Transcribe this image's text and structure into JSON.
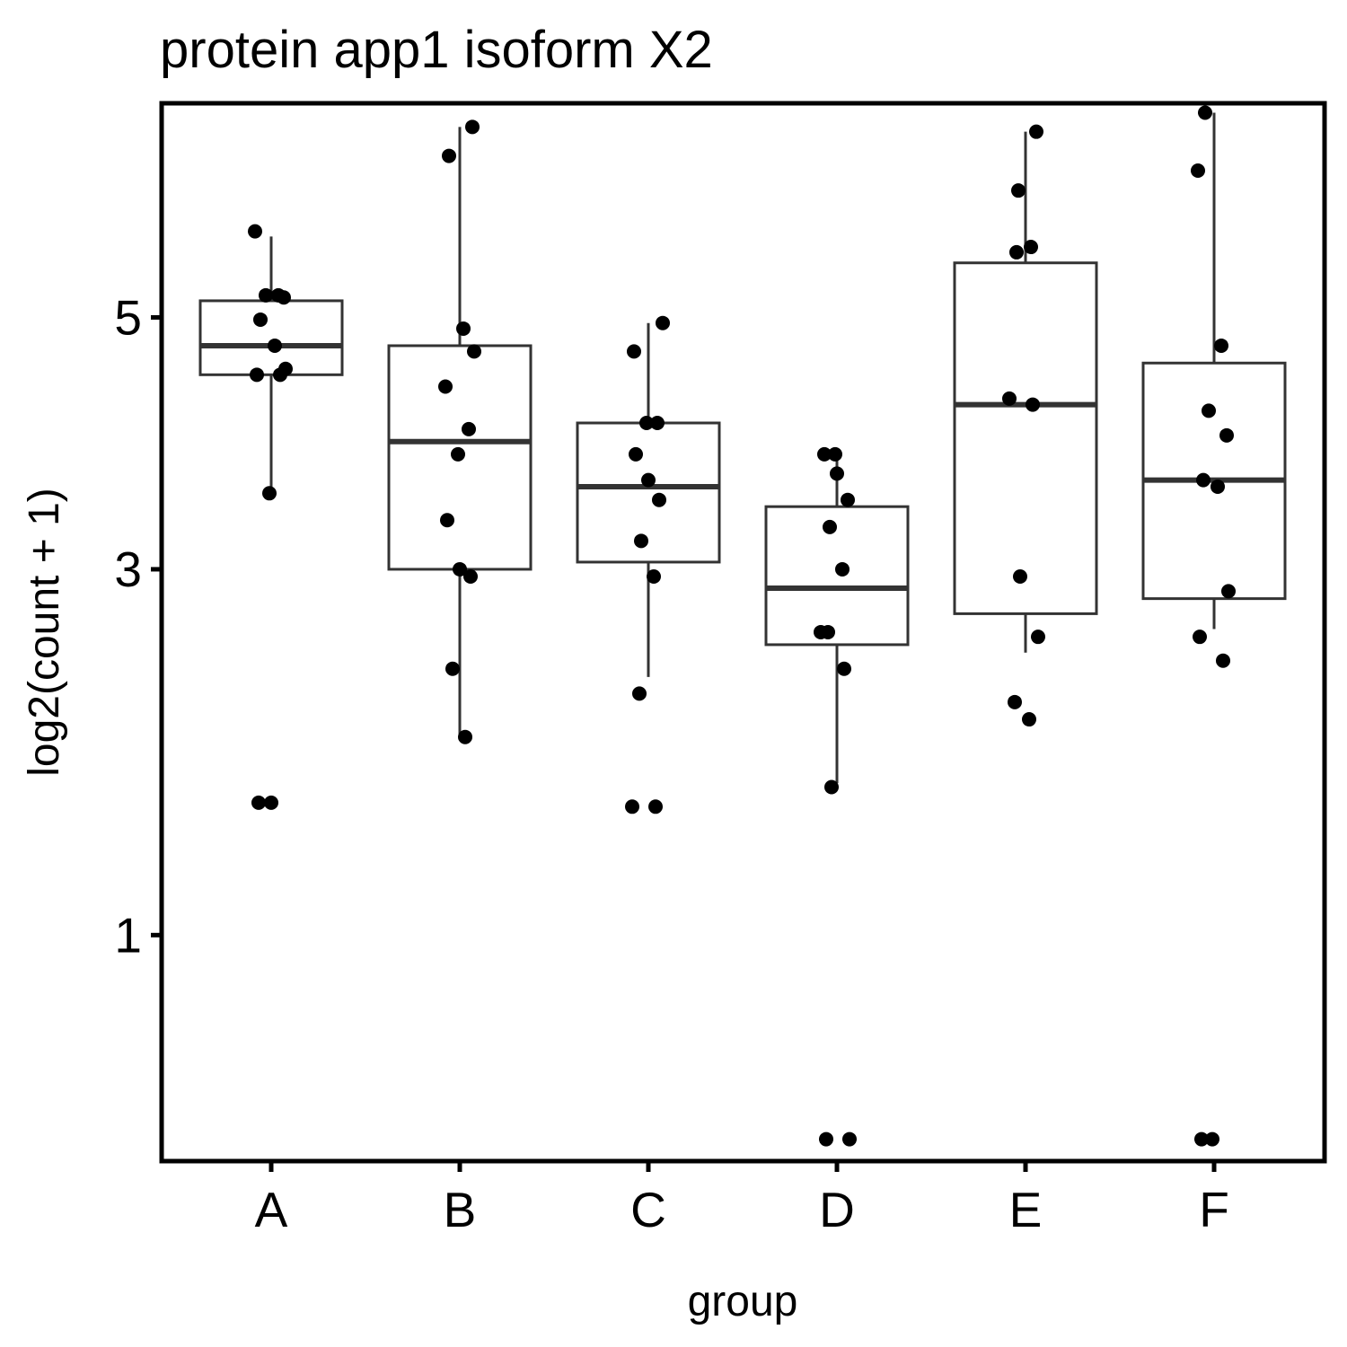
{
  "chart_data": {
    "type": "box",
    "title": "protein app1 isoform X2",
    "xlabel": "group",
    "ylabel": "log2(count + 1)",
    "y_scale": "sqrt",
    "ylim": [
      0.3,
      7.1
    ],
    "yticks": [
      1,
      3,
      5
    ],
    "ytick_labels": [
      "1",
      "3",
      "5"
    ],
    "categories": [
      "A",
      "B",
      "C",
      "D",
      "E",
      "F"
    ],
    "grid": false,
    "legend": "none",
    "boxes": [
      {
        "group": "A",
        "q1": 4.5,
        "median": 4.75,
        "q3": 5.15,
        "whisker_low": 3.55,
        "whisker_high": 5.75
      },
      {
        "group": "B",
        "q1": 3.0,
        "median": 3.95,
        "q3": 4.75,
        "whisker_low": 1.95,
        "whisker_high": 6.85
      },
      {
        "group": "C",
        "q1": 3.05,
        "median": 3.6,
        "q3": 4.1,
        "whisker_low": 2.3,
        "whisker_high": 4.95
      },
      {
        "group": "D",
        "q1": 2.5,
        "median": 2.87,
        "q3": 3.45,
        "whisker_low": 1.7,
        "whisker_high": 3.9
      },
      {
        "group": "E",
        "q1": 2.7,
        "median": 4.25,
        "q3": 5.5,
        "whisker_low": 2.45,
        "whisker_high": 6.8
      },
      {
        "group": "F",
        "q1": 2.8,
        "median": 3.65,
        "q3": 4.6,
        "whisker_low": 2.6,
        "whisker_high": 7.0
      }
    ],
    "points": [
      {
        "group": "A",
        "values": [
          5.8,
          5.2,
          5.2,
          5.18,
          4.98,
          4.75,
          4.55,
          4.5,
          4.5,
          3.55,
          1.6,
          1.6
        ]
      },
      {
        "group": "B",
        "values": [
          6.85,
          6.55,
          4.9,
          4.7,
          4.4,
          4.05,
          3.85,
          3.35,
          3.0,
          2.95,
          2.35,
          1.95
        ]
      },
      {
        "group": "C",
        "values": [
          4.95,
          4.7,
          4.1,
          4.1,
          3.85,
          3.65,
          3.5,
          3.2,
          2.95,
          2.2,
          1.58,
          1.58
        ]
      },
      {
        "group": "D",
        "values": [
          3.85,
          3.85,
          3.7,
          3.5,
          3.3,
          3.0,
          2.58,
          2.58,
          2.35,
          1.68,
          0.35,
          0.35
        ]
      },
      {
        "group": "E",
        "values": [
          6.8,
          6.2,
          5.65,
          5.6,
          4.3,
          4.25,
          2.95,
          2.55,
          2.15,
          2.05
        ]
      },
      {
        "group": "F",
        "values": [
          7.0,
          6.4,
          4.75,
          4.2,
          4.0,
          3.65,
          3.6,
          2.85,
          2.55,
          2.4,
          0.35,
          0.35
        ]
      }
    ]
  }
}
